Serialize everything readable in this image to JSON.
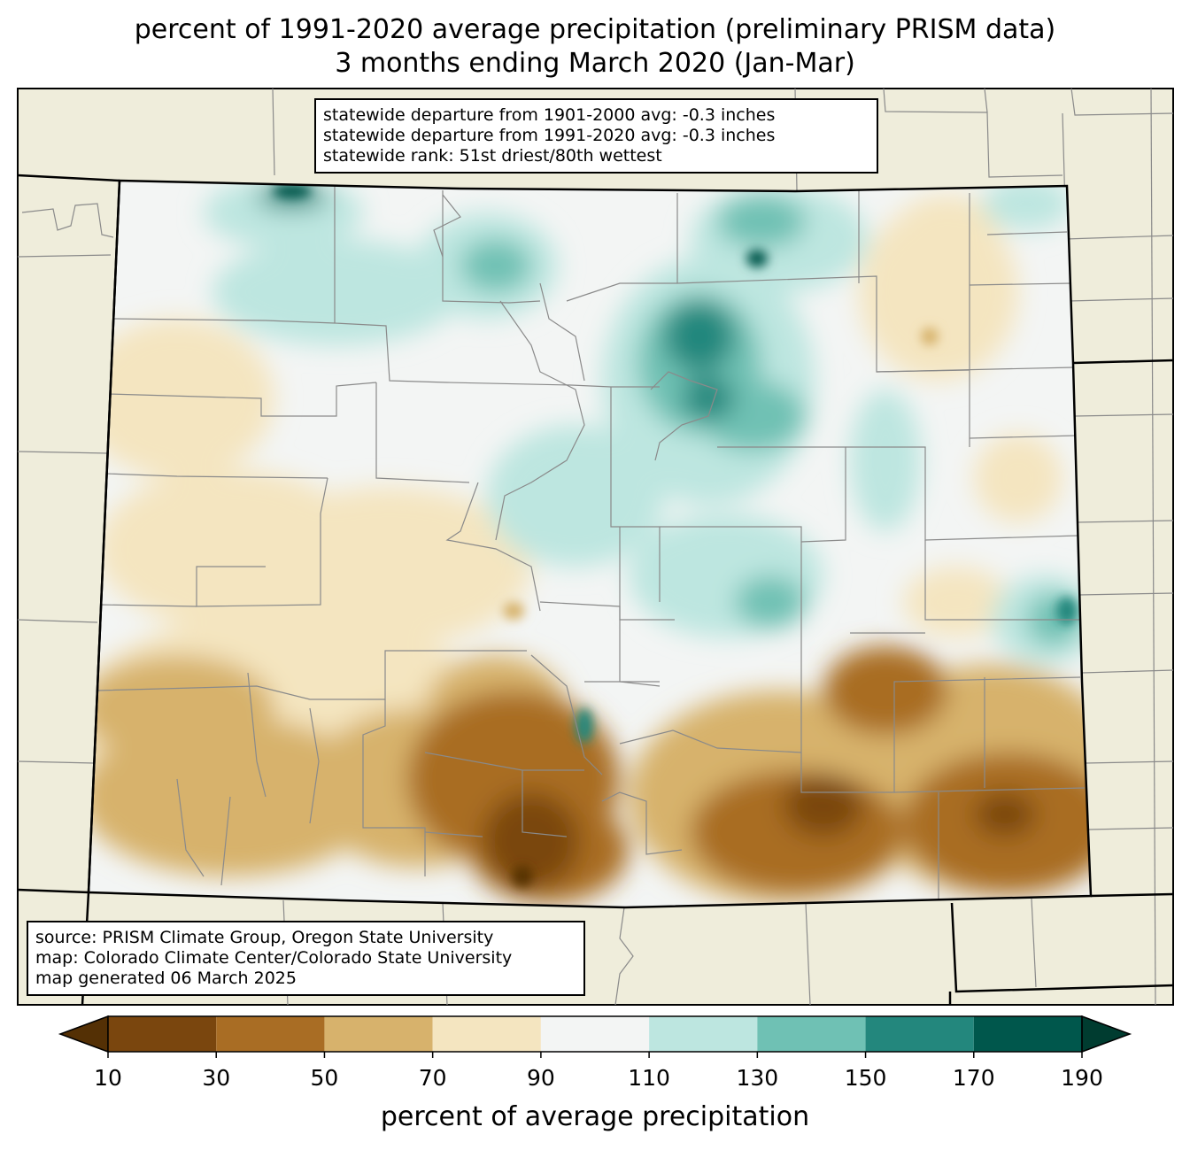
{
  "title": {
    "line1": "percent of 1991-2020 average precipitation (preliminary PRISM data)",
    "line2": "3 months ending March 2020 (Jan-Mar)"
  },
  "stats": {
    "line1": "statewide departure from 1901-2000 avg: -0.3 inches",
    "line2": "statewide departure from 1991-2020 avg: -0.3 inches",
    "line3": "statewide rank: 51st driest/80th wettest"
  },
  "source": {
    "line1": "source: PRISM Climate Group, Oregon State University",
    "line2": "map: Colorado Climate Center/Colorado State University",
    "line3": "map generated 06 March 2025"
  },
  "colorbar": {
    "label": "percent of average precipitation",
    "ticks": [
      "10",
      "30",
      "50",
      "70",
      "90",
      "110",
      "130",
      "150",
      "170",
      "190"
    ],
    "colors": [
      "#543005",
      "#7a460e",
      "#a96d24",
      "#d7b26c",
      "#f4e5c0",
      "#f3f5f4",
      "#bde6e0",
      "#6fc1b4",
      "#23877d",
      "#00574c",
      "#003c30"
    ]
  },
  "colors": {
    "land_outside": "#efeddb",
    "state_boundary": "#000000",
    "county_lines": "#808080"
  }
}
